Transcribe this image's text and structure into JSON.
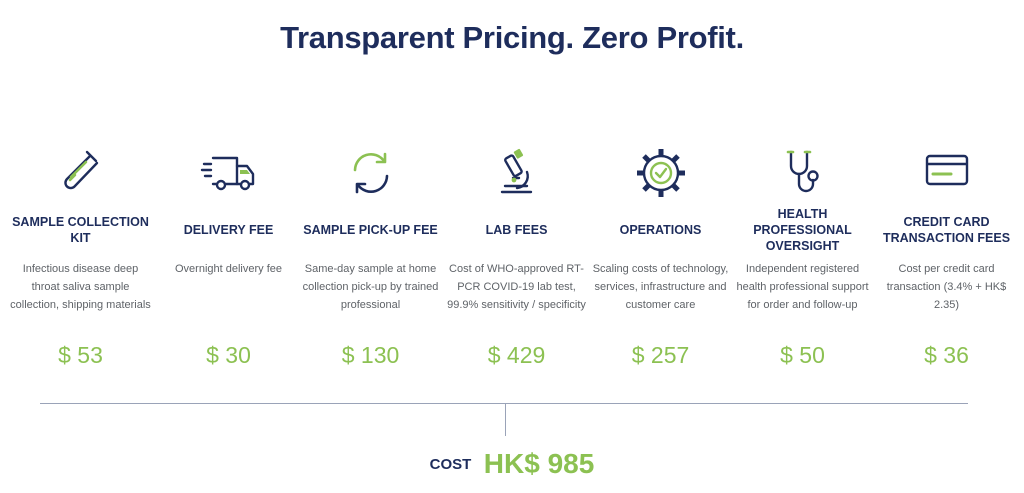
{
  "header": {
    "title": "Transparent Pricing. Zero Profit."
  },
  "colors": {
    "navy": "#1e2d5c",
    "green": "#8cc152",
    "gray_text": "#5f6368"
  },
  "items": [
    {
      "icon": "test-tube-icon",
      "name": "SAMPLE COLLECTION KIT",
      "description": "Infectious disease deep throat saliva sample collection, shipping materials",
      "price": "$ 53"
    },
    {
      "icon": "delivery-truck-icon",
      "name": "DELIVERY FEE",
      "description": "Overnight delivery fee",
      "price": "$ 30"
    },
    {
      "icon": "refresh-cycle-icon",
      "name": "SAMPLE PICK-UP FEE",
      "description": "Same-day sample at home collection pick-up by trained professional",
      "price": "$ 130"
    },
    {
      "icon": "microscope-icon",
      "name": "LAB FEES",
      "description": "Cost of WHO-approved RT-PCR COVID-19 lab test, 99.9% sensitivity / specificity",
      "price": "$ 429"
    },
    {
      "icon": "gear-check-icon",
      "name": "OPERATIONS",
      "description": "Scaling costs of technology, services, infrastructure and customer care",
      "price": "$ 257"
    },
    {
      "icon": "stethoscope-icon",
      "name": "HEALTH PROFESSIONAL OVERSIGHT",
      "description": "Independent registered health professional support for order and follow-up",
      "price": "$ 50"
    },
    {
      "icon": "credit-card-icon",
      "name": "CREDIT CARD TRANSACTION FEES",
      "description": "Cost per credit card transaction (3.4% + HK$ 2.35)",
      "price": "$ 36"
    }
  ],
  "total": {
    "label": "COST",
    "value": "HK$ 985"
  }
}
